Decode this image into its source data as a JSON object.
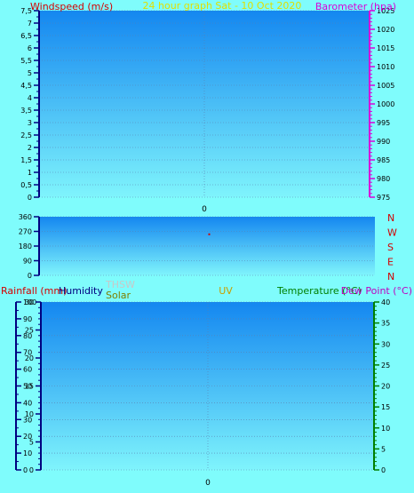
{
  "colors": {
    "background": "#7ffcfc",
    "plot_top": "#1487f0",
    "plot_bottom": "#7ff4fc",
    "grid": "#5a7fb0",
    "wind": "#d40000",
    "baro": "#d800d8",
    "title": "#e0e000",
    "dir": "#d40000",
    "rain": "#d40000",
    "humidity": "#00007f",
    "thsw": "#c8c8c8",
    "solar": "#7f7f00",
    "uv": "#c8a000",
    "temp": "#007f00",
    "dew": "#c000c0",
    "axis_blue": "#00007f",
    "axis_navy": "#000080"
  },
  "chart_data": [
    {
      "type": "line",
      "title": "24 hour graph Sat - 10 Oct 2020",
      "ylabel_left": "Windspeed (m/s)",
      "ylabel_right": "Barometer (hpa)",
      "y_left": {
        "range": [
          0,
          7.5
        ],
        "ticks": [
          "0",
          "0,5",
          "1",
          "1,5",
          "2",
          "2,5",
          "3",
          "3,5",
          "4",
          "4,5",
          "5",
          "5,5",
          "6",
          "6,5",
          "7",
          "7,5"
        ]
      },
      "y_right": {
        "range": [
          975,
          1025
        ],
        "ticks": [
          "975",
          "980",
          "985",
          "990",
          "995",
          "1000",
          "1005",
          "1010",
          "1015",
          "1020",
          "1025"
        ]
      },
      "x_ticks": [
        "0"
      ],
      "grid": true,
      "series": []
    },
    {
      "type": "scatter",
      "y_left": {
        "range": [
          0,
          360
        ],
        "ticks": [
          "0",
          "90",
          "180",
          "270",
          "360"
        ]
      },
      "compass_labels": [
        "N",
        "W",
        "S",
        "E",
        "N"
      ],
      "grid": true,
      "points": [
        {
          "x": 0.1,
          "y": 255
        }
      ]
    },
    {
      "type": "line",
      "labels": {
        "rainfall": "Rainfall (mm)",
        "humidity": "Humidity",
        "thsw": "THSW",
        "solar": "Solar",
        "uv": "UV",
        "temperature": "Temperature (°C)",
        "dewpoint": "Dew Point (°C)"
      },
      "y_rain": {
        "range": [
          0,
          100
        ],
        "ticks": [
          "0",
          "10",
          "20",
          "30",
          "40",
          "50",
          "60",
          "70",
          "80",
          "90",
          "100"
        ]
      },
      "y_humidity": {
        "range": [
          0,
          30
        ],
        "ticks": [
          "0",
          "5",
          "10",
          "15",
          "20",
          "25",
          "30"
        ]
      },
      "y_temp": {
        "range": [
          0,
          40
        ],
        "ticks": [
          "0",
          "5",
          "10",
          "15",
          "20",
          "25",
          "30",
          "35",
          "40"
        ]
      },
      "x_ticks": [
        "0"
      ],
      "grid": true,
      "series": []
    }
  ]
}
